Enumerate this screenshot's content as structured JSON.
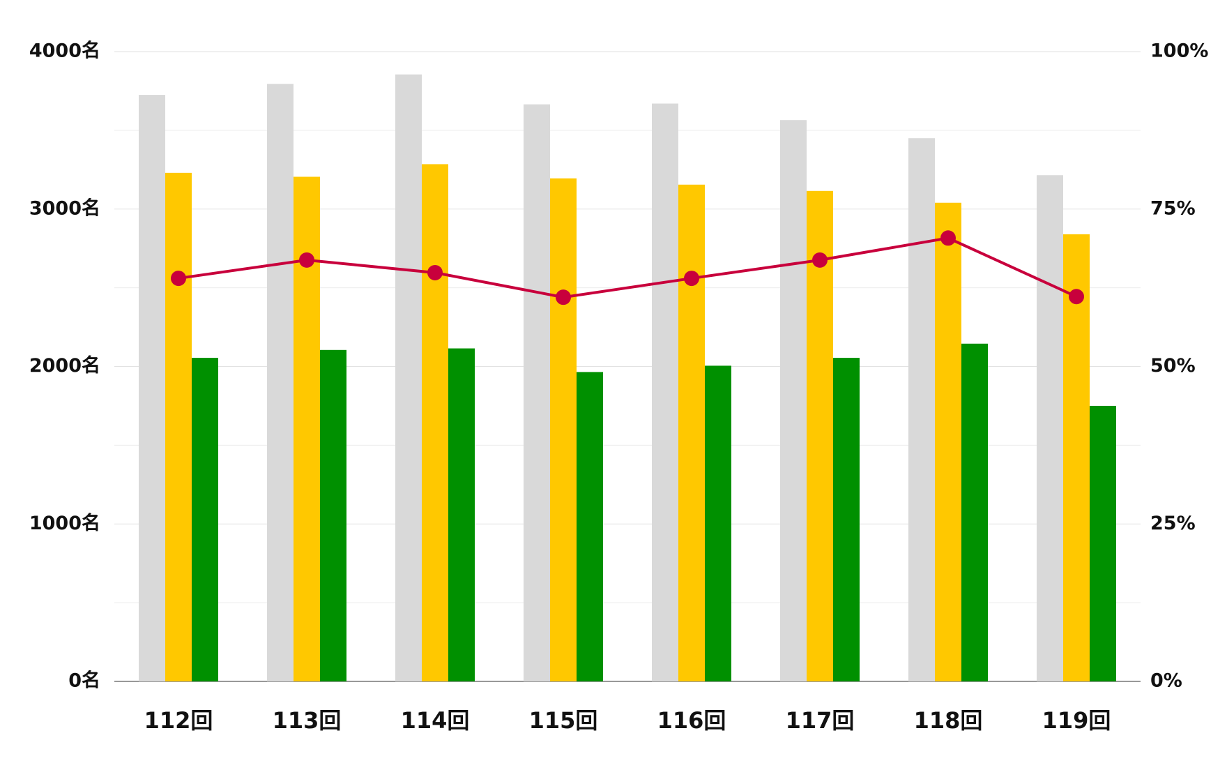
{
  "chart_data": {
    "type": "bar_line",
    "categories": [
      "112回",
      "113回",
      "114回",
      "115回",
      "116回",
      "117回",
      "118回",
      "119回"
    ],
    "series": [
      {
        "color": "#d9d9d9",
        "values": [
          3725,
          3795,
          3855,
          3665,
          3670,
          3565,
          3450,
          3215
        ]
      },
      {
        "color": "#ffc800",
        "values": [
          3230,
          3205,
          3285,
          3195,
          3155,
          3115,
          3040,
          2840
        ]
      },
      {
        "color": "#009000",
        "values": [
          2055,
          2105,
          2115,
          1965,
          2005,
          2055,
          2145,
          1750
        ]
      },
      {
        "type": "line",
        "axis": "y2",
        "color": "#c8003c",
        "values": [
          64.0,
          66.9,
          64.9,
          61.0,
          64.0,
          66.9,
          70.4,
          61.1
        ]
      }
    ],
    "ylim": [
      0,
      4000
    ],
    "yticks": [
      {
        "value": 0,
        "label": "0名"
      },
      {
        "value": 1000,
        "label": "1000名"
      },
      {
        "value": 2000,
        "label": "2000名"
      },
      {
        "value": 3000,
        "label": "3000名"
      },
      {
        "value": 4000,
        "label": "4000名"
      }
    ],
    "y_minor_ticks": [
      500,
      1500,
      2500,
      3500
    ],
    "y2lim": [
      0,
      100
    ],
    "y2ticks": [
      {
        "value": 0,
        "label": "0%"
      },
      {
        "value": 25,
        "label": "25%"
      },
      {
        "value": 50,
        "label": "50%"
      },
      {
        "value": 75,
        "label": "75%"
      },
      {
        "value": 100,
        "label": "100%"
      }
    ],
    "grid": true
  }
}
